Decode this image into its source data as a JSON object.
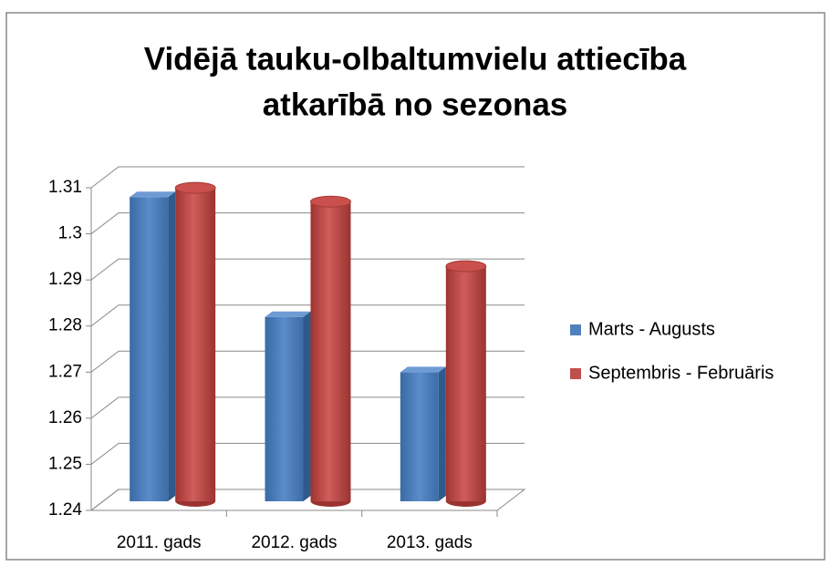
{
  "chart_data": {
    "type": "bar3d",
    "title": [
      "Vidējā tauku-olbaltumvielu attiecība",
      "atkarībā no sezonas"
    ],
    "categories": [
      "2011. gads",
      "2012. gads",
      "2013. gads"
    ],
    "series": [
      {
        "name": "Marts - Augusts",
        "color": "#4f81bd",
        "values": [
          1.306,
          1.28,
          1.268
        ]
      },
      {
        "name": "Septembris - Februāris",
        "color": "#c0504d",
        "values": [
          1.308,
          1.305,
          1.291
        ]
      }
    ],
    "ylim": [
      1.24,
      1.31
    ],
    "yticks": [
      1.24,
      1.25,
      1.26,
      1.27,
      1.28,
      1.29,
      1.3,
      1.31
    ],
    "grid": true,
    "legend": "right"
  }
}
